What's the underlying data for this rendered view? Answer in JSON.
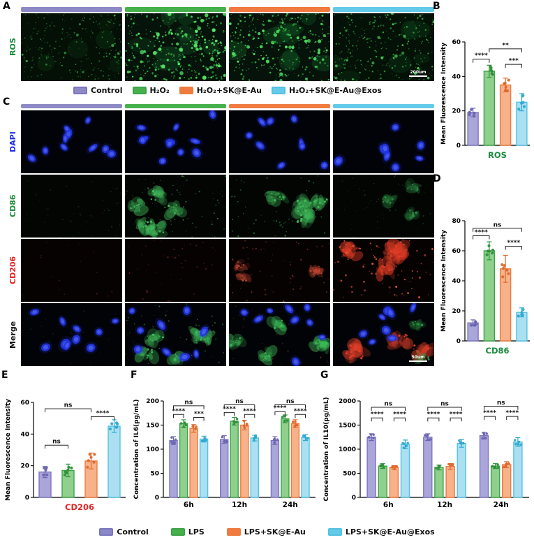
{
  "colors": {
    "purple": {
      "strip": "#8d89c7",
      "fill": "#aaa6da",
      "stroke": "#7b76c0",
      "dot": "#6a65b0"
    },
    "green": {
      "strip": "#46b14c",
      "fill": "#8fd08e",
      "stroke": "#3da348",
      "dot": "#2f8f3a"
    },
    "orange": {
      "strip": "#f07a40",
      "fill": "#f7b28a",
      "stroke": "#ec7b3e",
      "dot": "#e0682c"
    },
    "cyan": {
      "strip": "#63cbe9",
      "fill": "#abe0f2",
      "stroke": "#55c1e1",
      "dot": "#2fa9d0"
    }
  },
  "panels": {
    "A": {
      "label": "A",
      "row_label": "ROS",
      "row_label_color": "#1a8a3c"
    },
    "B": {
      "label": "B"
    },
    "C": {
      "label": "C",
      "row_labels": [
        "DAPI",
        "CD86",
        "CD206",
        "Merge"
      ],
      "row_label_colors": [
        "#1e2ee8",
        "#1c8a3a",
        "#e02020",
        "#111111"
      ]
    },
    "D": {
      "label": "D"
    },
    "E": {
      "label": "E"
    },
    "F": {
      "label": "F"
    },
    "G": {
      "label": "G"
    }
  },
  "legends": {
    "top": {
      "items": [
        {
          "label": "Control",
          "color": "purple"
        },
        {
          "label": "H₂O₂",
          "color": "green"
        },
        {
          "label": "H₂O₂+SK@E-Au",
          "color": "orange"
        },
        {
          "label": "H₂O₂+SK@E-Au@Exos",
          "color": "cyan"
        }
      ]
    },
    "bottom": {
      "items": [
        {
          "label": "Control",
          "color": "purple"
        },
        {
          "label": "LPS",
          "color": "green"
        },
        {
          "label": "LPS+SK@E-Au",
          "color": "orange"
        },
        {
          "label": "LPS+SK@E-Au@Exos",
          "color": "cyan"
        }
      ]
    }
  },
  "chart_data": [
    {
      "id": "B",
      "type": "bar",
      "ylabel": "Mean Fluorescence Intensity",
      "xlabel": "ROS",
      "xlabel_color": "#1a8a3c",
      "ylim": [
        0,
        60
      ],
      "yticks": [
        0,
        20,
        40,
        60
      ],
      "groups": [
        "Control",
        "H₂O₂",
        "H₂O₂+SK@E-Au",
        "H₂O₂+SK@E-Au@Exos"
      ],
      "colors": [
        "purple",
        "green",
        "orange",
        "cyan"
      ],
      "values": [
        19,
        43,
        35,
        25
      ],
      "errors": [
        2.5,
        3.5,
        4,
        5
      ],
      "brackets": [
        {
          "a": 0,
          "b": 1,
          "y": 50,
          "label": "****"
        },
        {
          "a": 2,
          "b": 3,
          "y": 47,
          "label": "***"
        },
        {
          "a": 1,
          "b": 3,
          "y": 56,
          "label": "**"
        }
      ]
    },
    {
      "id": "D",
      "type": "bar",
      "ylabel": "Mean Fluorescence Intensity",
      "xlabel": "CD86",
      "xlabel_color": "#1a8a3c",
      "ylim": [
        0,
        80
      ],
      "yticks": [
        0,
        20,
        40,
        60,
        80
      ],
      "groups": [
        "Control",
        "H₂O₂",
        "H₂O₂+SK@E-Au",
        "H₂O₂+SK@E-Au@Exos"
      ],
      "colors": [
        "purple",
        "green",
        "orange",
        "cyan"
      ],
      "values": [
        12,
        60,
        48,
        19
      ],
      "errors": [
        2,
        6,
        9,
        3
      ],
      "brackets": [
        {
          "a": 0,
          "b": 1,
          "y": 70,
          "label": "****"
        },
        {
          "a": 2,
          "b": 3,
          "y": 63,
          "label": "****"
        },
        {
          "a": 0,
          "b": 3,
          "y": 75,
          "label": "ns"
        }
      ]
    },
    {
      "id": "E",
      "type": "bar",
      "ylabel": "Mean Fluorescence Intensity",
      "xlabel": "CD206",
      "xlabel_color": "#e02626",
      "ylim": [
        0,
        60
      ],
      "yticks": [
        0,
        20,
        40,
        60
      ],
      "groups": [
        "Control",
        "H₂O₂",
        "H₂O₂+SK@E-Au",
        "H₂O₂+SK@E-Au@Exos"
      ],
      "colors": [
        "purple",
        "green",
        "orange",
        "cyan"
      ],
      "values": [
        16,
        17,
        23,
        45
      ],
      "errors": [
        3.5,
        4,
        5,
        4
      ],
      "brackets": [
        {
          "a": 0,
          "b": 1,
          "y": 33,
          "label": "ns"
        },
        {
          "a": 2,
          "b": 3,
          "y": 51,
          "label": "****"
        },
        {
          "a": 0,
          "b": 2,
          "y": 56,
          "label": "ns"
        }
      ]
    },
    {
      "id": "F",
      "type": "grouped-bar",
      "ylabel": "Concentration of IL6(pg/mL)",
      "categories": [
        "6h",
        "12h",
        "24h"
      ],
      "ylim": [
        0,
        200
      ],
      "yticks": [
        0,
        50,
        100,
        150,
        200
      ],
      "series": [
        {
          "name": "Control",
          "color": "purple",
          "values": [
            118,
            120,
            118
          ],
          "errors": [
            8,
            8,
            8
          ]
        },
        {
          "name": "LPS",
          "color": "green",
          "values": [
            153,
            158,
            163
          ],
          "errors": [
            8,
            8,
            8
          ]
        },
        {
          "name": "LPS+SK@E-Au",
          "color": "orange",
          "values": [
            143,
            150,
            153
          ],
          "errors": [
            8,
            10,
            8
          ]
        },
        {
          "name": "LPS+SK@E-Au@Exos",
          "color": "cyan",
          "values": [
            121,
            123,
            124
          ],
          "errors": [
            6,
            6,
            6
          ]
        }
      ],
      "brackets": [
        {
          "g": 0,
          "a": 0,
          "b": 1,
          "y": 172,
          "label": "****"
        },
        {
          "g": 0,
          "a": 2,
          "b": 3,
          "y": 166,
          "label": "***"
        },
        {
          "g": 0,
          "a": 0,
          "b": 3,
          "y": 190,
          "label": "ns"
        },
        {
          "g": 1,
          "a": 0,
          "b": 1,
          "y": 176,
          "label": "****"
        },
        {
          "g": 1,
          "a": 2,
          "b": 3,
          "y": 172,
          "label": "****"
        },
        {
          "g": 1,
          "a": 0,
          "b": 3,
          "y": 192,
          "label": "ns"
        },
        {
          "g": 2,
          "a": 0,
          "b": 1,
          "y": 178,
          "label": "****"
        },
        {
          "g": 2,
          "a": 2,
          "b": 3,
          "y": 172,
          "label": "****"
        },
        {
          "g": 2,
          "a": 0,
          "b": 3,
          "y": 192,
          "label": "ns"
        }
      ]
    },
    {
      "id": "G",
      "type": "grouped-bar",
      "ylabel": "Concentration of IL10(pg/mL)",
      "categories": [
        "6h",
        "12h",
        "24h"
      ],
      "ylim": [
        0,
        2000
      ],
      "yticks": [
        0,
        500,
        1000,
        1500,
        2000
      ],
      "series": [
        {
          "name": "Control",
          "color": "purple",
          "values": [
            1250,
            1250,
            1280
          ],
          "errors": [
            70,
            70,
            70
          ]
        },
        {
          "name": "LPS",
          "color": "green",
          "values": [
            650,
            620,
            650
          ],
          "errors": [
            50,
            50,
            50
          ]
        },
        {
          "name": "LPS+SK@E-Au",
          "color": "orange",
          "values": [
            620,
            640,
            680
          ],
          "errors": [
            40,
            60,
            60
          ]
        },
        {
          "name": "LPS+SK@E-Au@Exos",
          "color": "cyan",
          "values": [
            1100,
            1120,
            1150
          ],
          "errors": [
            90,
            80,
            90
          ]
        }
      ],
      "brackets": [
        {
          "g": 0,
          "a": 0,
          "b": 1,
          "y": 1650,
          "label": "****"
        },
        {
          "g": 0,
          "a": 2,
          "b": 3,
          "y": 1650,
          "label": "****"
        },
        {
          "g": 0,
          "a": 0,
          "b": 3,
          "y": 1870,
          "label": "ns"
        },
        {
          "g": 1,
          "a": 0,
          "b": 1,
          "y": 1650,
          "label": "****"
        },
        {
          "g": 1,
          "a": 2,
          "b": 3,
          "y": 1650,
          "label": "****"
        },
        {
          "g": 1,
          "a": 0,
          "b": 3,
          "y": 1870,
          "label": "ns"
        },
        {
          "g": 2,
          "a": 0,
          "b": 1,
          "y": 1680,
          "label": "****"
        },
        {
          "g": 2,
          "a": 2,
          "b": 3,
          "y": 1680,
          "label": "****"
        },
        {
          "g": 2,
          "a": 0,
          "b": 3,
          "y": 1890,
          "label": "ns"
        }
      ]
    }
  ],
  "microscopy": {
    "A": [
      {
        "seed": 101,
        "bg": "#041006",
        "layers": [
          {
            "kind": "patch",
            "n": 5,
            "c": "#0d3f17",
            "s0": 10,
            "s1": 22,
            "o": 0.35
          },
          {
            "kind": "speck",
            "n": 240,
            "c": "#2f9e3c",
            "r0": 0.4,
            "r1": 1.2,
            "o0": 0.25,
            "o1": 0.85
          },
          {
            "kind": "speck",
            "n": 12,
            "c": "#3fc04f",
            "r0": 1.2,
            "r1": 2,
            "o0": 0.5,
            "o1": 0.85
          }
        ]
      },
      {
        "seed": 102,
        "bg": "#05130a",
        "layers": [
          {
            "kind": "patch",
            "n": 9,
            "c": "#15612a",
            "s0": 10,
            "s1": 24,
            "o": 0.4
          },
          {
            "kind": "speck",
            "n": 300,
            "c": "#3bd150",
            "r0": 0.5,
            "r1": 1.6,
            "o0": 0.4,
            "o1": 1
          },
          {
            "kind": "speck",
            "n": 46,
            "c": "#55e866",
            "r0": 1.5,
            "r1": 3,
            "o0": 0.7,
            "o1": 1
          }
        ]
      },
      {
        "seed": 103,
        "bg": "#05130a",
        "layers": [
          {
            "kind": "patch",
            "n": 8,
            "c": "#135c26",
            "s0": 10,
            "s1": 22,
            "o": 0.4
          },
          {
            "kind": "speck",
            "n": 280,
            "c": "#38c84d",
            "r0": 0.5,
            "r1": 1.5,
            "o0": 0.4,
            "o1": 1
          },
          {
            "kind": "speck",
            "n": 38,
            "c": "#4fe260",
            "r0": 1.4,
            "r1": 2.8,
            "o0": 0.7,
            "o1": 1
          }
        ]
      },
      {
        "seed": 104,
        "bg": "#041107",
        "scale": "200um",
        "layers": [
          {
            "kind": "patch",
            "n": 6,
            "c": "#104c1e",
            "s0": 10,
            "s1": 20,
            "o": 0.35
          },
          {
            "kind": "speck",
            "n": 260,
            "c": "#33b846",
            "r0": 0.4,
            "r1": 1.3,
            "o0": 0.35,
            "o1": 0.95
          },
          {
            "kind": "speck",
            "n": 22,
            "c": "#47d258",
            "r0": 1.3,
            "r1": 2.4,
            "o0": 0.6,
            "o1": 0.95
          }
        ]
      }
    ],
    "C": [
      [
        {
          "seed": 111,
          "bg": "#020309",
          "layers": [
            {
              "kind": "nuc",
              "n": 10
            }
          ]
        },
        {
          "seed": 112,
          "bg": "#020309",
          "layers": [
            {
              "kind": "nuc",
              "n": 11
            }
          ]
        },
        {
          "seed": 113,
          "bg": "#020309",
          "layers": [
            {
              "kind": "nuc",
              "n": 9
            }
          ]
        },
        {
          "seed": 114,
          "bg": "#020309",
          "layers": [
            {
              "kind": "nuc",
              "n": 8
            }
          ]
        }
      ],
      [
        {
          "seed": 121,
          "bg": "#020502",
          "layers": [
            {
              "kind": "speck",
              "n": 60,
              "c": "#1e6b2c",
              "r0": 0.4,
              "r1": 1.1,
              "o0": 0.15,
              "o1": 0.5
            }
          ]
        },
        {
          "seed": 122,
          "bg": "#020502",
          "layers": [
            {
              "kind": "cell",
              "n": 5,
              "c": "#43c05e",
              "s": 13,
              "o": 0.5
            },
            {
              "kind": "speck",
              "n": 70,
              "c": "#37a94d",
              "r0": 0.4,
              "r1": 1.2,
              "o0": 0.3,
              "o1": 0.8
            }
          ]
        },
        {
          "seed": 123,
          "bg": "#020502",
          "layers": [
            {
              "kind": "cell",
              "n": 5,
              "c": "#3fbc5a",
              "s": 13,
              "o": 0.5
            },
            {
              "kind": "speck",
              "n": 65,
              "c": "#35a44a",
              "r0": 0.4,
              "r1": 1.2,
              "o0": 0.3,
              "o1": 0.8
            }
          ]
        },
        {
          "seed": 124,
          "bg": "#020502",
          "layers": [
            {
              "kind": "cell",
              "n": 3,
              "c": "#2d8f44",
              "s": 11,
              "o": 0.35
            },
            {
              "kind": "speck",
              "n": 45,
              "c": "#277a38",
              "r0": 0.4,
              "r1": 1,
              "o0": 0.2,
              "o1": 0.6
            }
          ]
        }
      ],
      [
        {
          "seed": 131,
          "bg": "#070202",
          "layers": [
            {
              "kind": "speck",
              "n": 30,
              "c": "#a03030",
              "r0": 0.4,
              "r1": 1.1,
              "o0": 0.15,
              "o1": 0.5
            }
          ]
        },
        {
          "seed": 132,
          "bg": "#070202",
          "layers": [
            {
              "kind": "speck",
              "n": 46,
              "c": "#b23636",
              "r0": 0.4,
              "r1": 1.2,
              "o0": 0.2,
              "o1": 0.55
            }
          ]
        },
        {
          "seed": 133,
          "bg": "#070202",
          "layers": [
            {
              "kind": "cell",
              "n": 4,
              "c": "#c04532",
              "s": 9,
              "o": 0.35
            },
            {
              "kind": "speck",
              "n": 55,
              "c": "#c24a36",
              "r0": 0.4,
              "r1": 1.3,
              "o0": 0.25,
              "o1": 0.6
            }
          ]
        },
        {
          "seed": 134,
          "bg": "#070202",
          "layers": [
            {
              "kind": "cell",
              "n": 4,
              "c": "#e63e27",
              "s": 15,
              "o": 0.55
            },
            {
              "kind": "speck",
              "n": 75,
              "c": "#ef5b3c",
              "r0": 0.5,
              "r1": 1.6,
              "o0": 0.4,
              "o1": 0.9
            }
          ]
        }
      ],
      [
        {
          "seed": 141,
          "bg": "#020306",
          "layers": [
            {
              "kind": "speck",
              "n": 40,
              "c": "#2a7a34",
              "r0": 0.4,
              "r1": 1,
              "o0": 0.15,
              "o1": 0.45
            },
            {
              "kind": "nuc",
              "n": 10
            }
          ]
        },
        {
          "seed": 142,
          "bg": "#020306",
          "layers": [
            {
              "kind": "cell",
              "n": 5,
              "c": "#3fbf5a",
              "s": 13,
              "o": 0.5
            },
            {
              "kind": "speck",
              "n": 60,
              "c": "#37a84c",
              "r0": 0.4,
              "r1": 1.2,
              "o0": 0.3,
              "o1": 0.7
            },
            {
              "kind": "nuc",
              "n": 9
            }
          ]
        },
        {
          "seed": 143,
          "bg": "#020306",
          "layers": [
            {
              "kind": "cell",
              "n": 5,
              "c": "#3cbb57",
              "s": 12,
              "o": 0.5
            },
            {
              "kind": "speck",
              "n": 35,
              "c": "#c04a35",
              "r0": 0.4,
              "r1": 1.2,
              "o0": 0.2,
              "o1": 0.5
            },
            {
              "kind": "nuc",
              "n": 9
            }
          ]
        },
        {
          "seed": 144,
          "bg": "#020306",
          "scale": "50um",
          "layers": [
            {
              "kind": "cell",
              "n": 4,
              "c": "#e4402a",
              "s": 15,
              "o": 0.55
            },
            {
              "kind": "cell",
              "n": 2,
              "c": "#2f9a45",
              "s": 10,
              "o": 0.3
            },
            {
              "kind": "nuc",
              "n": 8
            }
          ]
        }
      ]
    ]
  }
}
